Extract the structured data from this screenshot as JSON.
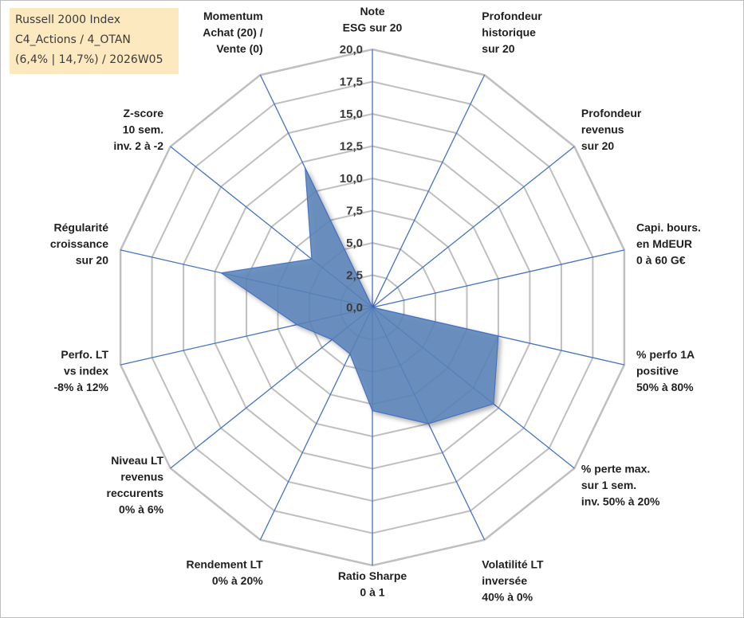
{
  "info_box": {
    "line1": "Russell 2000 Index",
    "line2": "C4_Actions / 4_OTAN",
    "line3": "(6,4% | 14,7%) / 2026W05"
  },
  "chart_data": {
    "type": "radar",
    "range": [
      0,
      20
    ],
    "tick_step": 2.5,
    "tick_labels": [
      "0,0",
      "2,5",
      "5,0",
      "7,5",
      "10,0",
      "12,5",
      "15,0",
      "17,5",
      "20,0"
    ],
    "axes": [
      [
        "Note",
        "ESG sur 20"
      ],
      [
        "Profondeur",
        "historique",
        "sur 20"
      ],
      [
        "Profondeur",
        "revenus",
        "sur 20"
      ],
      [
        "Capi. bours.",
        "en MdEUR",
        "0 à 60 G€"
      ],
      [
        "% perfo 1A",
        "positive",
        "50% à 80%"
      ],
      [
        "% perte max.",
        "sur 1 sem.",
        "inv. 50% à 20%"
      ],
      [
        "Volatilité LT",
        "inversée",
        "40% à 0%"
      ],
      [
        "Ratio Sharpe",
        "0 à 1"
      ],
      [
        "Rendement LT",
        "0% à 20%"
      ],
      [
        "Niveau LT",
        "revenus",
        "reccurents",
        "0% à 6%"
      ],
      [
        "Perfo. LT",
        "vs index",
        "-8% à 12%"
      ],
      [
        "Régularité",
        "croissance",
        "sur 20"
      ],
      [
        "Z-score",
        "10 sem.",
        "inv. 2 à -2"
      ],
      [
        "Momentum",
        "Achat (20) /",
        "Vente (0)"
      ]
    ],
    "series": [
      {
        "values": [
          0,
          0,
          0,
          0,
          10,
          12,
          10,
          8,
          4,
          4,
          6,
          12,
          6,
          12
        ]
      }
    ],
    "fill_color": "#5b84b8",
    "line_color": "#4472c4",
    "grid_color": "#bfbfbf",
    "grid": true,
    "legend": "top-left"
  }
}
